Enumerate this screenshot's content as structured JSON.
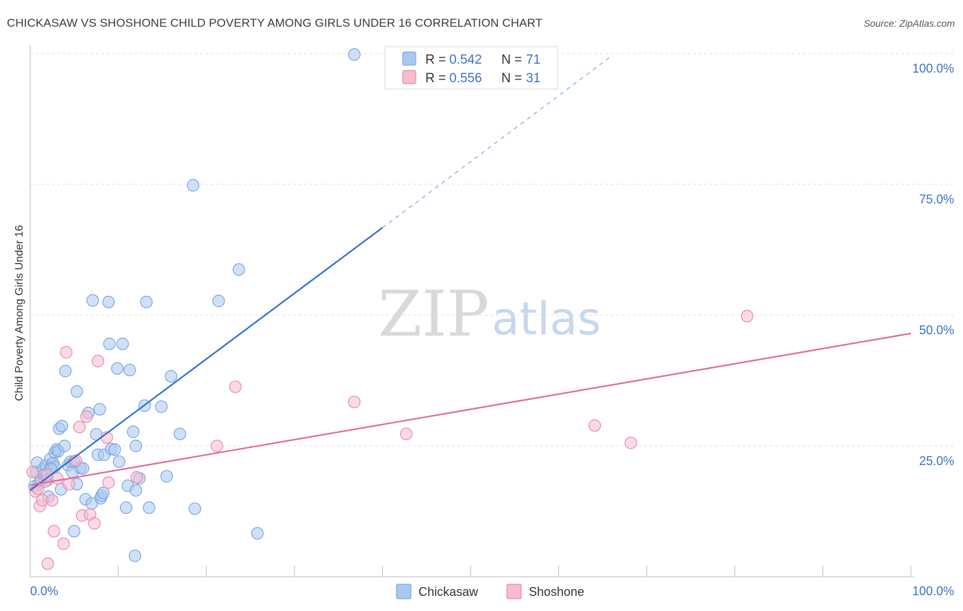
{
  "chart_data": {
    "type": "scatter",
    "title": "CHICKASAW VS SHOSHONE CHILD POVERTY AMONG GIRLS UNDER 16 CORRELATION CHART",
    "source": "Source: ZipAtlas.com",
    "xlabel": "",
    "ylabel": "Child Poverty Among Girls Under 16",
    "xlim": [
      0,
      100
    ],
    "ylim": [
      0,
      100
    ],
    "x_tick_labels": {
      "left": "0.0%",
      "right": "100.0%"
    },
    "y_ticks": [
      {
        "value": 25,
        "label": "25.0%"
      },
      {
        "value": 50,
        "label": "50.0%"
      },
      {
        "value": 75,
        "label": "75.0%"
      },
      {
        "value": 100,
        "label": "100.0%"
      }
    ],
    "watermark": {
      "part1": "ZIP",
      "part2": "atlas"
    },
    "colors": {
      "chickasaw_fill": "#a9c8f0",
      "chickasaw_stroke": "#7aa6e0",
      "chickasaw_line": "#2a6fcc",
      "shoshone_fill": "#f6bcd0",
      "shoshone_stroke": "#e98aac",
      "shoshone_line": "#e06a98",
      "value_blue": "#3a72c8",
      "grid": "#dddddd"
    },
    "legend": {
      "rows": [
        {
          "series": "Chickasaw",
          "r_label": "R =",
          "r_value": "0.542",
          "n_label": "N =",
          "n_value": "71"
        },
        {
          "series": "Shoshone",
          "r_label": "R =",
          "r_value": "0.556",
          "n_label": "N =",
          "n_value": "31"
        }
      ]
    },
    "series": [
      {
        "name": "Chickasaw",
        "trend": {
          "x_start": 0,
          "y_start": 16.5,
          "x_solid_end": 40,
          "y_solid_end": 66.7,
          "x_dash_end": 66,
          "y_dash_end": 99.5
        },
        "points": [
          [
            0.5,
            17.3
          ],
          [
            0.7,
            20.0
          ],
          [
            0.8,
            21.8
          ],
          [
            1.0,
            17.8
          ],
          [
            1.2,
            18.6
          ],
          [
            1.4,
            20.5
          ],
          [
            1.6,
            19.5
          ],
          [
            1.8,
            21.3
          ],
          [
            2.0,
            18.5
          ],
          [
            2.1,
            15.3
          ],
          [
            2.3,
            20.8
          ],
          [
            2.3,
            22.5
          ],
          [
            2.6,
            21.7
          ],
          [
            2.8,
            21.0
          ],
          [
            2.8,
            23.7
          ],
          [
            3.0,
            24.3
          ],
          [
            3.2,
            24.0
          ],
          [
            3.3,
            28.3
          ],
          [
            3.5,
            16.7
          ],
          [
            3.6,
            28.8
          ],
          [
            3.9,
            25.0
          ],
          [
            4.0,
            39.3
          ],
          [
            4.3,
            21.3
          ],
          [
            4.6,
            22.0
          ],
          [
            4.8,
            20.0
          ],
          [
            5.0,
            22.0
          ],
          [
            5.0,
            8.7
          ],
          [
            5.3,
            17.7
          ],
          [
            5.3,
            35.4
          ],
          [
            5.7,
            20.8
          ],
          [
            6.0,
            20.7
          ],
          [
            6.3,
            14.8
          ],
          [
            6.6,
            31.3
          ],
          [
            7.0,
            14.0
          ],
          [
            7.1,
            52.8
          ],
          [
            7.5,
            27.2
          ],
          [
            7.7,
            23.3
          ],
          [
            7.9,
            32.0
          ],
          [
            8.0,
            15.0
          ],
          [
            8.1,
            15.5
          ],
          [
            8.3,
            16.0
          ],
          [
            8.4,
            23.3
          ],
          [
            8.9,
            52.5
          ],
          [
            9.0,
            44.5
          ],
          [
            9.2,
            24.4
          ],
          [
            9.6,
            24.3
          ],
          [
            9.9,
            39.8
          ],
          [
            10.1,
            22.0
          ],
          [
            10.5,
            44.5
          ],
          [
            10.9,
            13.2
          ],
          [
            11.1,
            17.4
          ],
          [
            11.3,
            39.5
          ],
          [
            11.7,
            27.7
          ],
          [
            11.9,
            4.0
          ],
          [
            12.0,
            25.0
          ],
          [
            12.0,
            16.5
          ],
          [
            12.4,
            18.8
          ],
          [
            13.0,
            32.7
          ],
          [
            13.2,
            52.5
          ],
          [
            13.5,
            13.2
          ],
          [
            14.9,
            32.5
          ],
          [
            15.5,
            19.2
          ],
          [
            16.0,
            38.3
          ],
          [
            17.0,
            27.3
          ],
          [
            18.5,
            74.8
          ],
          [
            18.7,
            13.0
          ],
          [
            21.4,
            52.7
          ],
          [
            23.7,
            58.7
          ],
          [
            25.8,
            8.3
          ],
          [
            36.8,
            99.8
          ],
          [
            2.4,
            20.6
          ]
        ]
      },
      {
        "name": "Shoshone",
        "trend": {
          "x_start": 0,
          "y_start": 17.5,
          "x_end": 100,
          "y_end": 46.5
        },
        "points": [
          [
            0.6,
            16.3
          ],
          [
            0.9,
            16.8
          ],
          [
            1.1,
            13.5
          ],
          [
            1.4,
            14.6
          ],
          [
            1.7,
            18.2
          ],
          [
            2.0,
            2.5
          ],
          [
            2.5,
            14.6
          ],
          [
            2.7,
            8.7
          ],
          [
            3.1,
            18.8
          ],
          [
            3.8,
            6.3
          ],
          [
            4.1,
            42.9
          ],
          [
            4.4,
            17.7
          ],
          [
            5.2,
            22.2
          ],
          [
            5.6,
            28.6
          ],
          [
            5.9,
            11.7
          ],
          [
            6.4,
            30.6
          ],
          [
            6.8,
            11.9
          ],
          [
            7.3,
            10.2
          ],
          [
            7.7,
            41.2
          ],
          [
            8.7,
            26.6
          ],
          [
            8.9,
            18.0
          ],
          [
            12.1,
            19.0
          ],
          [
            21.2,
            25.0
          ],
          [
            23.3,
            36.3
          ],
          [
            36.8,
            33.4
          ],
          [
            42.7,
            27.3
          ],
          [
            64.1,
            28.9
          ],
          [
            68.2,
            25.6
          ],
          [
            81.4,
            49.8
          ],
          [
            0.3,
            20.0
          ],
          [
            1.9,
            19.5
          ]
        ]
      }
    ]
  },
  "bottom_legend": [
    {
      "label": "Chickasaw"
    },
    {
      "label": "Shoshone"
    }
  ]
}
